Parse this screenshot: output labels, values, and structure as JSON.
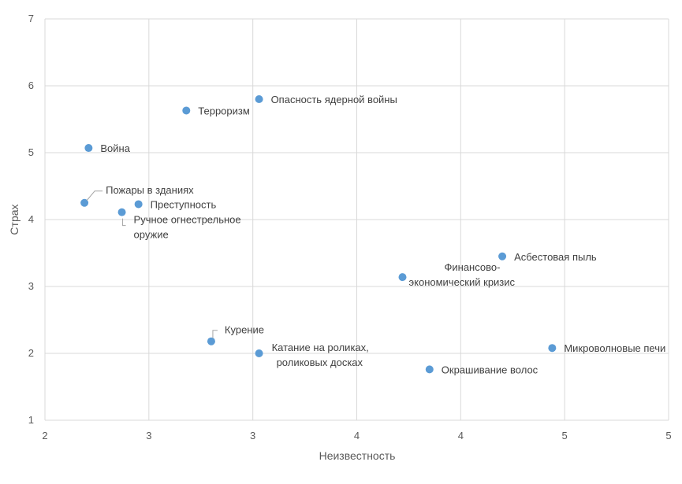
{
  "chart_data": {
    "type": "scatter",
    "title": "",
    "xlabel": "Неизвестность",
    "ylabel": "Страх",
    "xlim": [
      2,
      5
    ],
    "ylim": [
      1,
      7
    ],
    "x_ticks": [
      "2",
      "3",
      "3",
      "4",
      "4",
      "5",
      "5"
    ],
    "y_ticks": [
      "1",
      "2",
      "3",
      "4",
      "5",
      "6",
      "7"
    ],
    "grid": true,
    "legend": "none",
    "marker_color": "#5B9BD5",
    "points": [
      {
        "label": [
          "Опасность ядерной войны"
        ],
        "x": 3.03,
        "y": 5.8
      },
      {
        "label": [
          "Терроризм"
        ],
        "x": 2.68,
        "y": 5.63
      },
      {
        "label": [
          "Война"
        ],
        "x": 2.21,
        "y": 5.07
      },
      {
        "label": [
          "Пожары в зданиях"
        ],
        "x": 2.19,
        "y": 4.25
      },
      {
        "label": [
          "Преступность"
        ],
        "x": 2.45,
        "y": 4.23
      },
      {
        "label": [
          "Ручное огнестрельное",
          "оружие"
        ],
        "x": 2.37,
        "y": 4.11
      },
      {
        "label": [
          "Асбестовая пыль"
        ],
        "x": 4.2,
        "y": 3.45
      },
      {
        "label": [
          "Финансово-",
          "экономический кризис"
        ],
        "x": 3.72,
        "y": 3.14
      },
      {
        "label": [
          "Курение"
        ],
        "x": 2.8,
        "y": 2.18
      },
      {
        "label": [
          "Катание на роликах,",
          "роликовых досках"
        ],
        "x": 3.03,
        "y": 2.0
      },
      {
        "label": [
          "Микроволновые печи"
        ],
        "x": 4.44,
        "y": 2.08
      },
      {
        "label": [
          "Окрашивание волос"
        ],
        "x": 3.85,
        "y": 1.76
      }
    ]
  }
}
